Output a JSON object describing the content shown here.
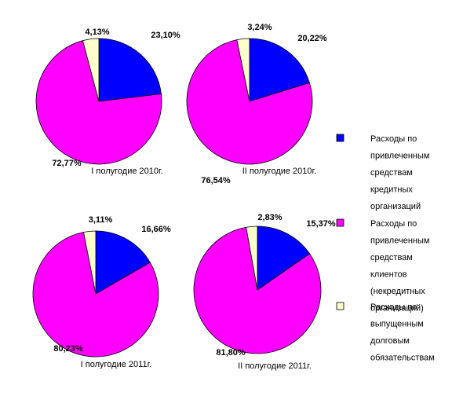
{
  "chart_data": [
    {
      "type": "pie",
      "caption": "I полугодие  2010г.",
      "series": [
        {
          "name": "Расходы по привлеченным средствам кредитных организаций",
          "value": 23.1,
          "label": "23,10%"
        },
        {
          "name": "Расходы по привлеченным средствам клиентов (некредитных организаций)",
          "value": 72.77,
          "label": "72,77%"
        },
        {
          "name": "Расходы по выпущенным долговым обязательствам",
          "value": 4.13,
          "label": "4,13%"
        }
      ]
    },
    {
      "type": "pie",
      "caption": "II полугодие  2010г.",
      "series": [
        {
          "name": "Расходы по привлеченным средствам кредитных организаций",
          "value": 20.22,
          "label": "20,22%"
        },
        {
          "name": "Расходы по привлеченным средствам клиентов (некредитных организаций)",
          "value": 76.54,
          "label": "76,54%"
        },
        {
          "name": "Расходы по выпущенным долговым обязательствам",
          "value": 3.24,
          "label": "3,24%"
        }
      ]
    },
    {
      "type": "pie",
      "caption": "I полугодие  2011г.",
      "series": [
        {
          "name": "Расходы по привлеченным средствам кредитных организаций",
          "value": 16.66,
          "label": "16,66%"
        },
        {
          "name": "Расходы по привлеченным средствам клиентов (некредитных организаций)",
          "value": 80.23,
          "label": "80,23%"
        },
        {
          "name": "Расходы по выпущенным долговым обязательствам",
          "value": 3.11,
          "label": "3,11%"
        }
      ]
    },
    {
      "type": "pie",
      "caption": "II полугодие  2011г.",
      "series": [
        {
          "name": "Расходы по привлеченным средствам кредитных организаций",
          "value": 15.37,
          "label": "15,37%"
        },
        {
          "name": "Расходы по привлеченным средствам клиентов (некредитных организаций)",
          "value": 81.8,
          "label": "81,80%"
        },
        {
          "name": "Расходы по выпущенным долговым обязательствам",
          "value": 2.83,
          "label": "2,83%"
        }
      ]
    }
  ],
  "colors": [
    "#0000ff",
    "#ff00ff",
    "#ffffcc"
  ],
  "legend": {
    "placement": "right",
    "items": [
      {
        "lines": [
          "Расходы по",
          "привлеченным",
          "средствам",
          "кредитных",
          "организаций"
        ],
        "color": "#0000ff"
      },
      {
        "lines": [
          "Расходы по",
          "привлеченным",
          "средствам",
          "клиентов",
          "(некредитных",
          "организаций)"
        ],
        "color": "#ff00ff"
      },
      {
        "lines": [
          "Расходы по",
          "выпущенным",
          "долговым",
          "обязательствам"
        ],
        "color": "#ffffcc"
      }
    ]
  }
}
